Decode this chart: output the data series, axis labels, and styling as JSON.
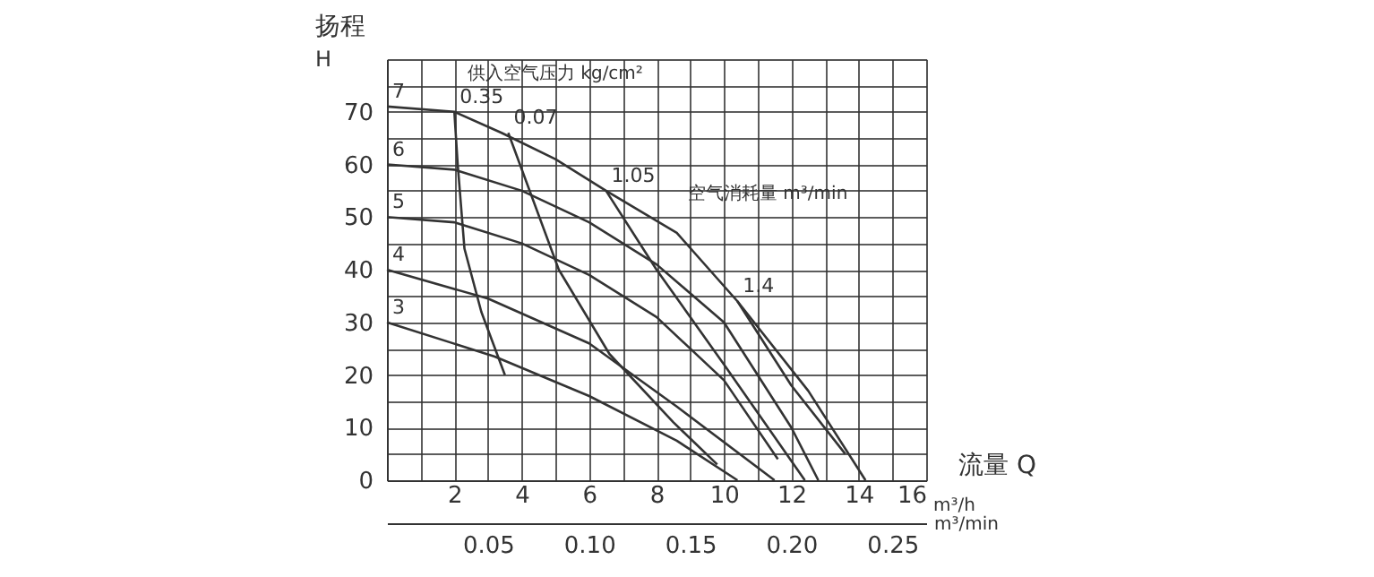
{
  "chart_data": {
    "type": "line",
    "ylabel": "扬程",
    "xlabel": "流量  Q",
    "x2label": "m³/min",
    "annotations": [
      "H",
      "供入空气压力  kg/cm²",
      "空气消耗量  m³/min",
      "m³/h"
    ],
    "xlim": [
      0,
      16
    ],
    "ylim": [
      0,
      80
    ],
    "x2lim": [
      0,
      0.2667
    ],
    "xticks": [
      {
        "value": 0,
        "label": null
      },
      {
        "value": 1,
        "label": null
      },
      2,
      {
        "value": 3,
        "label": null
      },
      4,
      {
        "value": 5,
        "label": null
      },
      6,
      {
        "value": 7,
        "label": null
      },
      8,
      {
        "value": 9,
        "label": null
      },
      10,
      {
        "value": 11,
        "label": null
      },
      12,
      {
        "value": 13,
        "label": null
      },
      14,
      {
        "value": 15,
        "label": null
      },
      16
    ],
    "yticks": [
      0,
      {
        "value": 5,
        "label": null
      },
      10,
      {
        "value": 15,
        "label": null
      },
      20,
      {
        "value": 25,
        "label": null
      },
      30,
      {
        "value": 35,
        "label": null
      },
      40,
      {
        "value": 45,
        "label": null
      },
      50,
      {
        "value": 55,
        "label": null
      },
      60,
      {
        "value": 65,
        "label": null
      },
      70,
      {
        "value": 75,
        "label": null
      },
      {
        "value": 80,
        "label": null
      }
    ],
    "x2ticks": [
      0.05,
      {
        "value": 0.1,
        "label": "0.10"
      },
      0.15,
      {
        "value": 0.2,
        "label": "0.20"
      },
      0.25
    ],
    "grid": true,
    "legend": false,
    "marker": "none",
    "line_style": "solid",
    "series": [
      {
        "name": "7",
        "color": "#333333",
        "x": [
          0,
          2,
          3.4,
          5,
          6.5,
          8.6,
          10.4,
          12.5,
          14.2
        ],
        "values": [
          71,
          70,
          66,
          61,
          55,
          47,
          34,
          17,
          0
        ]
      },
      {
        "name": "6",
        "color": "#333333",
        "x": [
          0,
          2,
          4,
          6,
          8,
          10,
          12,
          12.8
        ],
        "values": [
          60,
          59,
          55,
          49,
          41,
          30,
          10,
          0
        ]
      },
      {
        "name": "5",
        "color": "#333333",
        "x": [
          0,
          2,
          4,
          6,
          8,
          10,
          11.6
        ],
        "values": [
          50,
          49,
          45,
          39,
          31,
          19,
          4
        ]
      },
      {
        "name": "4",
        "color": "#333333",
        "x": [
          0,
          3,
          6,
          8.6,
          11.5
        ],
        "values": [
          40,
          34.5,
          26,
          14,
          0
        ]
      },
      {
        "name": "3",
        "color": "#333333",
        "x": [
          0,
          3.2,
          6,
          8.6,
          10.4
        ],
        "values": [
          30,
          23.5,
          16,
          7.5,
          0
        ]
      },
      {
        "name": "0.35",
        "color": "#333333",
        "x": [
          2,
          2.1,
          2.3,
          2.8,
          3.5
        ],
        "values": [
          70,
          60,
          44,
          32,
          20
        ]
      },
      {
        "name": "0.07",
        "color": "#333333",
        "x": [
          3.6,
          5.1,
          6.6,
          8.5,
          9.8
        ],
        "values": [
          66,
          40,
          24,
          11,
          3
        ]
      },
      {
        "name": "1.05",
        "color": "#333333",
        "x": [
          6.5,
          8,
          10,
          12.4
        ],
        "values": [
          55,
          40,
          22,
          0
        ]
      },
      {
        "name": "1.4",
        "color": "#333333",
        "x": [
          10.4,
          12,
          13.6
        ],
        "values": [
          34,
          18,
          5
        ]
      }
    ]
  }
}
